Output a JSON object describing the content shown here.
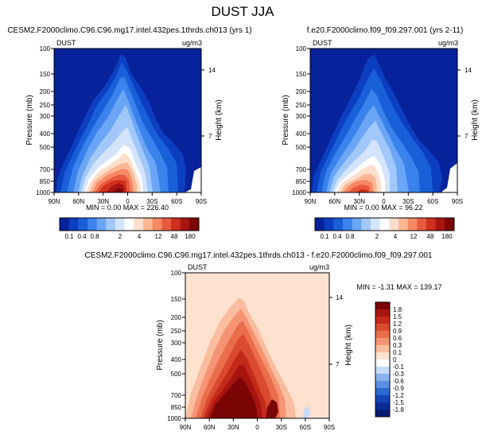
{
  "figure": {
    "title": "DUST JJA"
  },
  "chart_data": [
    {
      "type": "heatmap",
      "id": "panel1",
      "title": "CESM2.F2000climo.C96.C96.mg17.intel.432pes.1thrds.ch013 (yrs 1)",
      "var_label": "DUST",
      "units": "ug/m3",
      "ylabel": "Pressure (mb)",
      "y2label": "Height (km)",
      "x_ticks": [
        "90N",
        "60N",
        "30N",
        "0",
        "30S",
        "60S",
        "90S"
      ],
      "x_range": [
        90,
        -90
      ],
      "y_ticks": [
        "100",
        "150",
        "200",
        "250",
        "300",
        "400",
        "500",
        "700",
        "850",
        "1000"
      ],
      "y_range": [
        100,
        1000
      ],
      "height_ticks": [
        "14",
        "7"
      ],
      "stats": "MIN =  0.00  MAX = 226.40",
      "colorbar": {
        "labels": [
          "0.1",
          "0.4",
          "0.8",
          "2",
          "4",
          "12",
          "48",
          "180"
        ],
        "colors": [
          "#08229b",
          "#0c3fc0",
          "#1960d8",
          "#3a82ec",
          "#6aa6f5",
          "#a2c8fb",
          "#d3e4fc",
          "#ffffff",
          "#fddfcc",
          "#fbb795",
          "#f68864",
          "#e85a3d",
          "#cf2f1e",
          "#a81410",
          "#7c0606"
        ]
      }
    },
    {
      "type": "heatmap",
      "id": "panel2",
      "title": "f.e20.F2000climo.f09_f09.297.001 (yrs 2-11)",
      "var_label": "DUST",
      "units": "ug/m3",
      "ylabel": "Pressure (mb)",
      "y2label": "Height (km)",
      "x_ticks": [
        "90N",
        "60N",
        "30N",
        "0",
        "30S",
        "60S",
        "90S"
      ],
      "x_range": [
        90,
        -90
      ],
      "y_ticks": [
        "100",
        "150",
        "200",
        "250",
        "300",
        "400",
        "500",
        "700",
        "850",
        "1000"
      ],
      "y_range": [
        100,
        1000
      ],
      "height_ticks": [
        "14",
        "7"
      ],
      "stats": "MIN =  0.00  MAX = 96.22",
      "colorbar": {
        "labels": [
          "0.1",
          "0.4",
          "0.8",
          "2",
          "4",
          "12",
          "48",
          "180"
        ],
        "colors": [
          "#08229b",
          "#0c3fc0",
          "#1960d8",
          "#3a82ec",
          "#6aa6f5",
          "#a2c8fb",
          "#d3e4fc",
          "#ffffff",
          "#fddfcc",
          "#fbb795",
          "#f68864",
          "#e85a3d",
          "#cf2f1e",
          "#a81410",
          "#7c0606"
        ]
      }
    },
    {
      "type": "heatmap",
      "id": "diff",
      "title": "CESM2.F2000climo.C96.C96.mg17.intel.432pes.1thrds.ch013 - f.e20.F2000climo.f09_f09.297.001",
      "var_label": "DUST",
      "units": "ug/m3",
      "ylabel": "Pressure (mb)",
      "y2label": "Height (km)",
      "x_ticks": [
        "90N",
        "60N",
        "30N",
        "0",
        "30S",
        "60S",
        "90S"
      ],
      "x_range": [
        90,
        -90
      ],
      "y_ticks": [
        "100",
        "150",
        "200",
        "250",
        "300",
        "400",
        "500",
        "700",
        "850",
        "1000"
      ],
      "y_range": [
        100,
        1000
      ],
      "height_ticks": [
        "14",
        "7"
      ],
      "stats": "MIN =  -1.31  MAX = 139.17",
      "colorbar": {
        "labels": [
          "1.8",
          "1.5",
          "1.2",
          "0.9",
          "0.6",
          "0.3",
          "0.1",
          "0",
          "-0.1",
          "-0.3",
          "-0.6",
          "-0.9",
          "-1.2",
          "-1.5",
          "-1.8"
        ],
        "colors": [
          "#7c0606",
          "#a81410",
          "#c42a1a",
          "#da4a30",
          "#ea6d4c",
          "#f59474",
          "#fbbd9f",
          "#fde2d0",
          "#ffffff",
          "#c7dcf7",
          "#8ab4ef",
          "#5a8fe2",
          "#2f67d0",
          "#1444b3",
          "#0a2c95",
          "#061a76"
        ]
      }
    }
  ]
}
